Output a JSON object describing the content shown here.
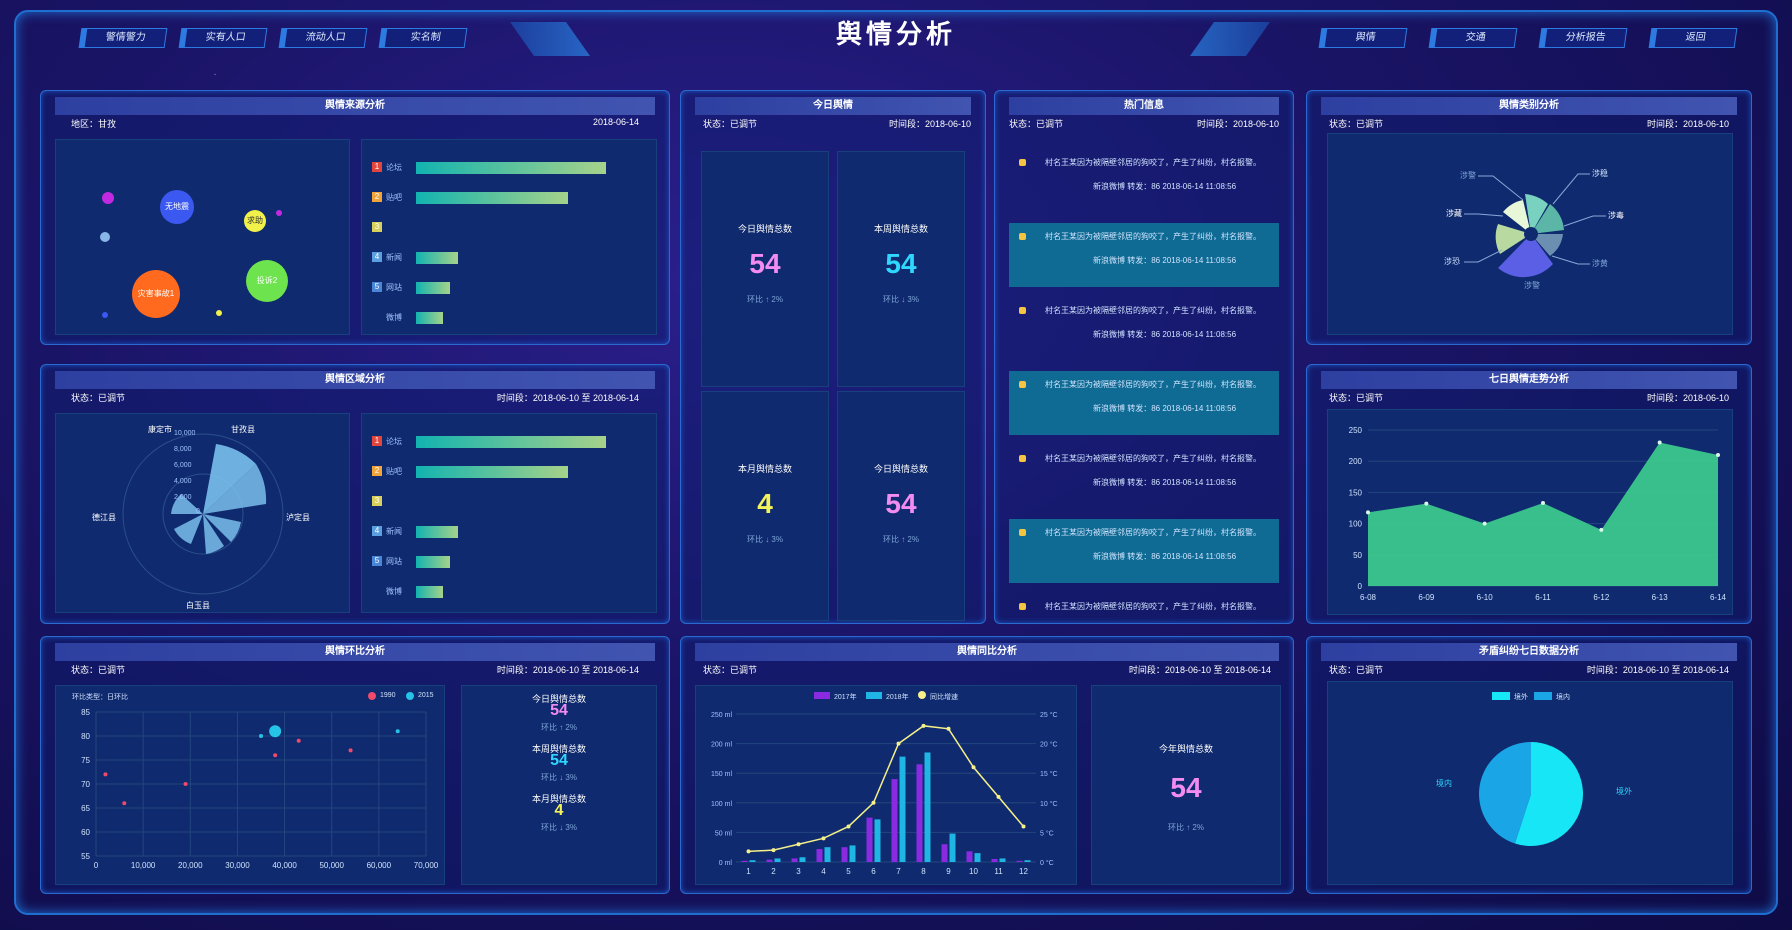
{
  "header": {
    "title": "舆情分析",
    "left_nav": [
      "警情警力",
      "实有人口",
      "流动人口",
      "实名制"
    ],
    "right_nav": [
      "舆情",
      "交通",
      "分析报告",
      "返回"
    ]
  },
  "source_panel": {
    "title": "舆情来源分析",
    "region": "地区：甘孜",
    "date": "2018-06-14",
    "bubbles": [
      "无地震",
      "求助",
      "投诉2",
      "灾害事故1"
    ],
    "bars": [
      {
        "n": "1",
        "label": "论坛",
        "value": 100
      },
      {
        "n": "2",
        "label": "贴吧",
        "value": 80
      },
      {
        "n": "3",
        "label": "",
        "value": 0
      },
      {
        "n": "4",
        "label": "新闻",
        "value": 22
      },
      {
        "n": "5",
        "label": "网站",
        "value": 18
      },
      {
        "n": "",
        "label": "微博",
        "value": 14
      }
    ]
  },
  "region_panel": {
    "title": "舆情区域分析",
    "status": "状态：已调节",
    "range": "时间段：2018-06-10 至 2018-06-14",
    "polar_labels": [
      "康定市",
      "甘孜县",
      "泸定县",
      "白玉县",
      "德江县"
    ],
    "polar_ticks": [
      "10,000",
      "8,000",
      "6,000",
      "4,000",
      "2,000",
      "0"
    ],
    "bars": [
      {
        "n": "1",
        "label": "论坛",
        "value": 100
      },
      {
        "n": "2",
        "label": "贴吧",
        "value": 80
      },
      {
        "n": "3",
        "label": "",
        "value": 0
      },
      {
        "n": "4",
        "label": "新闻",
        "value": 22
      },
      {
        "n": "5",
        "label": "网站",
        "value": 18
      },
      {
        "n": "",
        "label": "微博",
        "value": 14
      }
    ]
  },
  "today_panel": {
    "title": "今日舆情",
    "status": "状态：已调节",
    "time": "时间段：2018-06-10",
    "cells": [
      {
        "label": "今日舆情总数",
        "value": "54",
        "trend": "环比 ↑ 2%",
        "color": "#f28cf0"
      },
      {
        "label": "本周舆情总数",
        "value": "54",
        "trend": "环比 ↓ 3%",
        "color": "#2fd7ff"
      },
      {
        "label": "本月舆情总数",
        "value": "4",
        "trend": "环比 ↓ 3%",
        "color": "#f4f25a"
      },
      {
        "label": "今日舆情总数",
        "value": "54",
        "trend": "环比 ↑ 2%",
        "color": "#f28cf0"
      }
    ]
  },
  "hot_panel": {
    "title": "热门信息",
    "status": "状态：已调节",
    "time": "时间段：2018-06-10",
    "items": [
      {
        "text": "村名王某因为被隔壁邻居的狗咬了，产生了纠纷，村名报警。",
        "sub": "新浪微博 转发：86 2018-06-14 11:08:56"
      },
      {
        "text": "村名王某因为被隔壁邻居的狗咬了，产生了纠纷，村名报警。",
        "sub": "新浪微博 转发：86 2018-06-14 11:08:56"
      },
      {
        "text": "村名王某因为被隔壁邻居的狗咬了，产生了纠纷，村名报警。",
        "sub": "新浪微博 转发：86 2018-06-14 11:08:56"
      },
      {
        "text": "村名王某因为被隔壁邻居的狗咬了，产生了纠纷，村名报警。",
        "sub": "新浪微博 转发：86 2018-06-14 11:08:56"
      },
      {
        "text": "村名王某因为被隔壁邻居的狗咬了，产生了纠纷，村名报警。",
        "sub": "新浪微博 转发：86 2018-06-14 11:08:56"
      },
      {
        "text": "村名王某因为被隔壁邻居的狗咬了，产生了纠纷，村名报警。",
        "sub": "新浪微博 转发：86 2018-06-14 11:08:56"
      },
      {
        "text": "村名王某因为被隔壁邻居的狗咬了，产生了纠纷，村名报警。",
        "sub": ""
      }
    ]
  },
  "category_panel": {
    "title": "舆情类别分析",
    "status": "状态：已调节",
    "time": "时间段：2018-06-10",
    "labels": [
      "涉警",
      "涉稳",
      "涉藏",
      "涉毒",
      "涉恐",
      "涉黄",
      "涉警"
    ]
  },
  "trend_panel": {
    "title": "七日舆情走势分析",
    "status": "状态：已调节",
    "time": "时间段：2018-06-10"
  },
  "ratio_panel": {
    "title": "舆情环比分析",
    "status": "状态：已调节",
    "range": "时间段：2018-06-10 至 2018-06-14",
    "chart_label": "环比类型：日环比",
    "legend": [
      "1990",
      "2015"
    ],
    "stats": [
      {
        "label": "今日舆情总数",
        "value": "54",
        "trend": "环比 ↑ 2%",
        "color": "#f28cf0"
      },
      {
        "label": "本周舆情总数",
        "value": "54",
        "trend": "环比 ↓ 3%",
        "color": "#2fd7ff"
      },
      {
        "label": "本月舆情总数",
        "value": "4",
        "trend": "环比 ↓ 3%",
        "color": "#f4f25a"
      }
    ]
  },
  "yoy_panel": {
    "title": "舆情同比分析",
    "status": "状态：已调节",
    "range": "时间段：2018-06-10 至 2018-06-14",
    "legend": [
      "2017年",
      "2018年",
      "同比增速"
    ],
    "stat_label": "今年舆情总数",
    "stat_value": "54",
    "stat_trend": "环比 ↑ 2%"
  },
  "conflict_panel": {
    "title": "矛盾纠纷七日数据分析",
    "status": "状态：已调节",
    "range": "时间段：2018-06-10 至 2018-06-14",
    "legend": [
      "境外",
      "境内"
    ],
    "slice_labels": [
      "境内",
      "境外"
    ]
  },
  "chart_data": [
    {
      "type": "area",
      "title": "七日舆情走势分析",
      "categories": [
        "6-08",
        "6-09",
        "6-10",
        "6-11",
        "6-12",
        "6-13",
        "6-14"
      ],
      "values": [
        118,
        132,
        100,
        133,
        90,
        230,
        210
      ],
      "ylim": [
        0,
        250
      ],
      "yticks": [
        "250",
        "200",
        "150",
        "100",
        "50",
        "0"
      ]
    },
    {
      "type": "bar",
      "title": "舆情同比分析",
      "categories": [
        "1",
        "2",
        "3",
        "4",
        "5",
        "6",
        "7",
        "8",
        "9",
        "10",
        "11",
        "12"
      ],
      "series": [
        {
          "name": "2017年",
          "values": [
            2,
            4,
            6,
            22,
            25,
            75,
            140,
            165,
            30,
            18,
            5,
            2
          ]
        },
        {
          "name": "2018年",
          "values": [
            3,
            6,
            8,
            25,
            28,
            72,
            178,
            185,
            48,
            15,
            6,
            3
          ]
        },
        {
          "name": "同比增速",
          "values": [
            1.8,
            2,
            3,
            4,
            6,
            10,
            20,
            23,
            22.5,
            16,
            11,
            6
          ]
        }
      ],
      "y_left_ticks": [
        "250 ml",
        "200 ml",
        "150 ml",
        "100 ml",
        "50 ml",
        "0 ml"
      ],
      "y_right_ticks": [
        "25 °C",
        "20 °C",
        "15 °C",
        "10 °C",
        "5 °C",
        "0 °C"
      ]
    },
    {
      "type": "scatter",
      "title": "舆情环比分析",
      "x_ticks": [
        "0",
        "10,000",
        "20,000",
        "30,000",
        "40,000",
        "50,000",
        "60,000",
        "70,000"
      ],
      "y_ticks": [
        "85",
        "80",
        "75",
        "70",
        "65",
        "60",
        "55"
      ],
      "series": [
        {
          "name": "1990",
          "points": [
            [
              2000,
              72
            ],
            [
              6000,
              66
            ],
            [
              19000,
              70
            ],
            [
              38000,
              76
            ],
            [
              43000,
              79
            ],
            [
              54000,
              77
            ]
          ]
        },
        {
          "name": "2015",
          "points": [
            [
              35000,
              80
            ],
            [
              38000,
              81
            ],
            [
              64000,
              81
            ]
          ]
        }
      ]
    },
    {
      "type": "pie",
      "title": "矛盾纠纷七日数据分析",
      "series": [
        {
          "name": "境外",
          "value": 55
        },
        {
          "name": "境内",
          "value": 45
        }
      ]
    }
  ]
}
